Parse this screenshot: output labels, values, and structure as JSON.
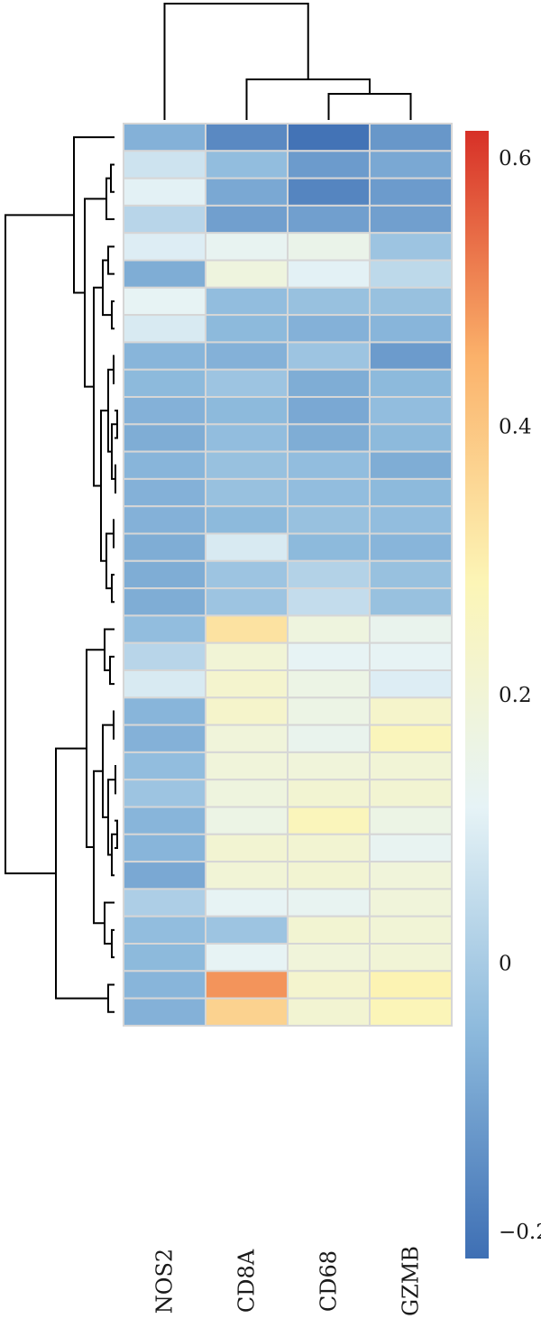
{
  "chart_data": {
    "type": "heatmap",
    "title": "",
    "xlabel": "",
    "ylabel": "",
    "columns": [
      "NOS2",
      "CD8A",
      "CD68",
      "GZMB"
    ],
    "rows": 33,
    "colorbar": {
      "range": [
        -0.22,
        0.62
      ],
      "ticks": [
        0.6,
        0.4,
        0.2,
        0,
        -0.2
      ],
      "tick_labels": [
        "0.6",
        "0.4",
        "0.2",
        "0",
        "−0.2"
      ],
      "colors": [
        "#3e6fb4",
        "#8cb9dc",
        "#e6f3f6",
        "#fcf5b6",
        "#fbb16a",
        "#d73027"
      ]
    },
    "values": [
      [
        -0.07,
        -0.16,
        -0.21,
        -0.13
      ],
      [
        0.07,
        -0.04,
        -0.12,
        -0.09
      ],
      [
        0.11,
        -0.09,
        -0.17,
        -0.12
      ],
      [
        0.03,
        -0.11,
        -0.11,
        -0.11
      ],
      [
        0.1,
        0.13,
        0.15,
        -0.02
      ],
      [
        -0.08,
        0.18,
        0.11,
        0.04
      ],
      [
        0.12,
        -0.04,
        -0.03,
        -0.03
      ],
      [
        0.09,
        -0.05,
        -0.07,
        -0.06
      ],
      [
        -0.06,
        -0.07,
        -0.02,
        -0.12
      ],
      [
        -0.05,
        -0.02,
        -0.08,
        -0.05
      ],
      [
        -0.07,
        -0.05,
        -0.09,
        -0.04
      ],
      [
        -0.08,
        -0.04,
        -0.08,
        -0.05
      ],
      [
        -0.06,
        -0.03,
        -0.04,
        -0.08
      ],
      [
        -0.07,
        -0.03,
        -0.04,
        -0.05
      ],
      [
        -0.07,
        -0.05,
        -0.03,
        -0.04
      ],
      [
        -0.08,
        0.09,
        -0.05,
        -0.06
      ],
      [
        -0.08,
        -0.02,
        0.02,
        -0.03
      ],
      [
        -0.08,
        -0.02,
        0.05,
        -0.03
      ],
      [
        -0.04,
        0.33,
        0.18,
        0.14
      ],
      [
        0.03,
        0.2,
        0.12,
        0.12
      ],
      [
        0.09,
        0.22,
        0.16,
        0.1
      ],
      [
        -0.06,
        0.23,
        0.16,
        0.23
      ],
      [
        -0.07,
        0.19,
        0.14,
        0.27
      ],
      [
        -0.04,
        0.19,
        0.19,
        0.2
      ],
      [
        -0.02,
        0.18,
        0.21,
        0.21
      ],
      [
        -0.06,
        0.16,
        0.27,
        0.16
      ],
      [
        -0.06,
        0.21,
        0.21,
        0.13
      ],
      [
        -0.09,
        0.2,
        0.21,
        0.19
      ],
      [
        0.01,
        0.12,
        0.13,
        0.19
      ],
      [
        -0.04,
        -0.02,
        0.21,
        0.2
      ],
      [
        -0.05,
        0.12,
        0.19,
        0.2
      ],
      [
        -0.06,
        0.49,
        0.22,
        0.29
      ],
      [
        -0.07,
        0.37,
        0.21,
        0.28
      ]
    ]
  }
}
